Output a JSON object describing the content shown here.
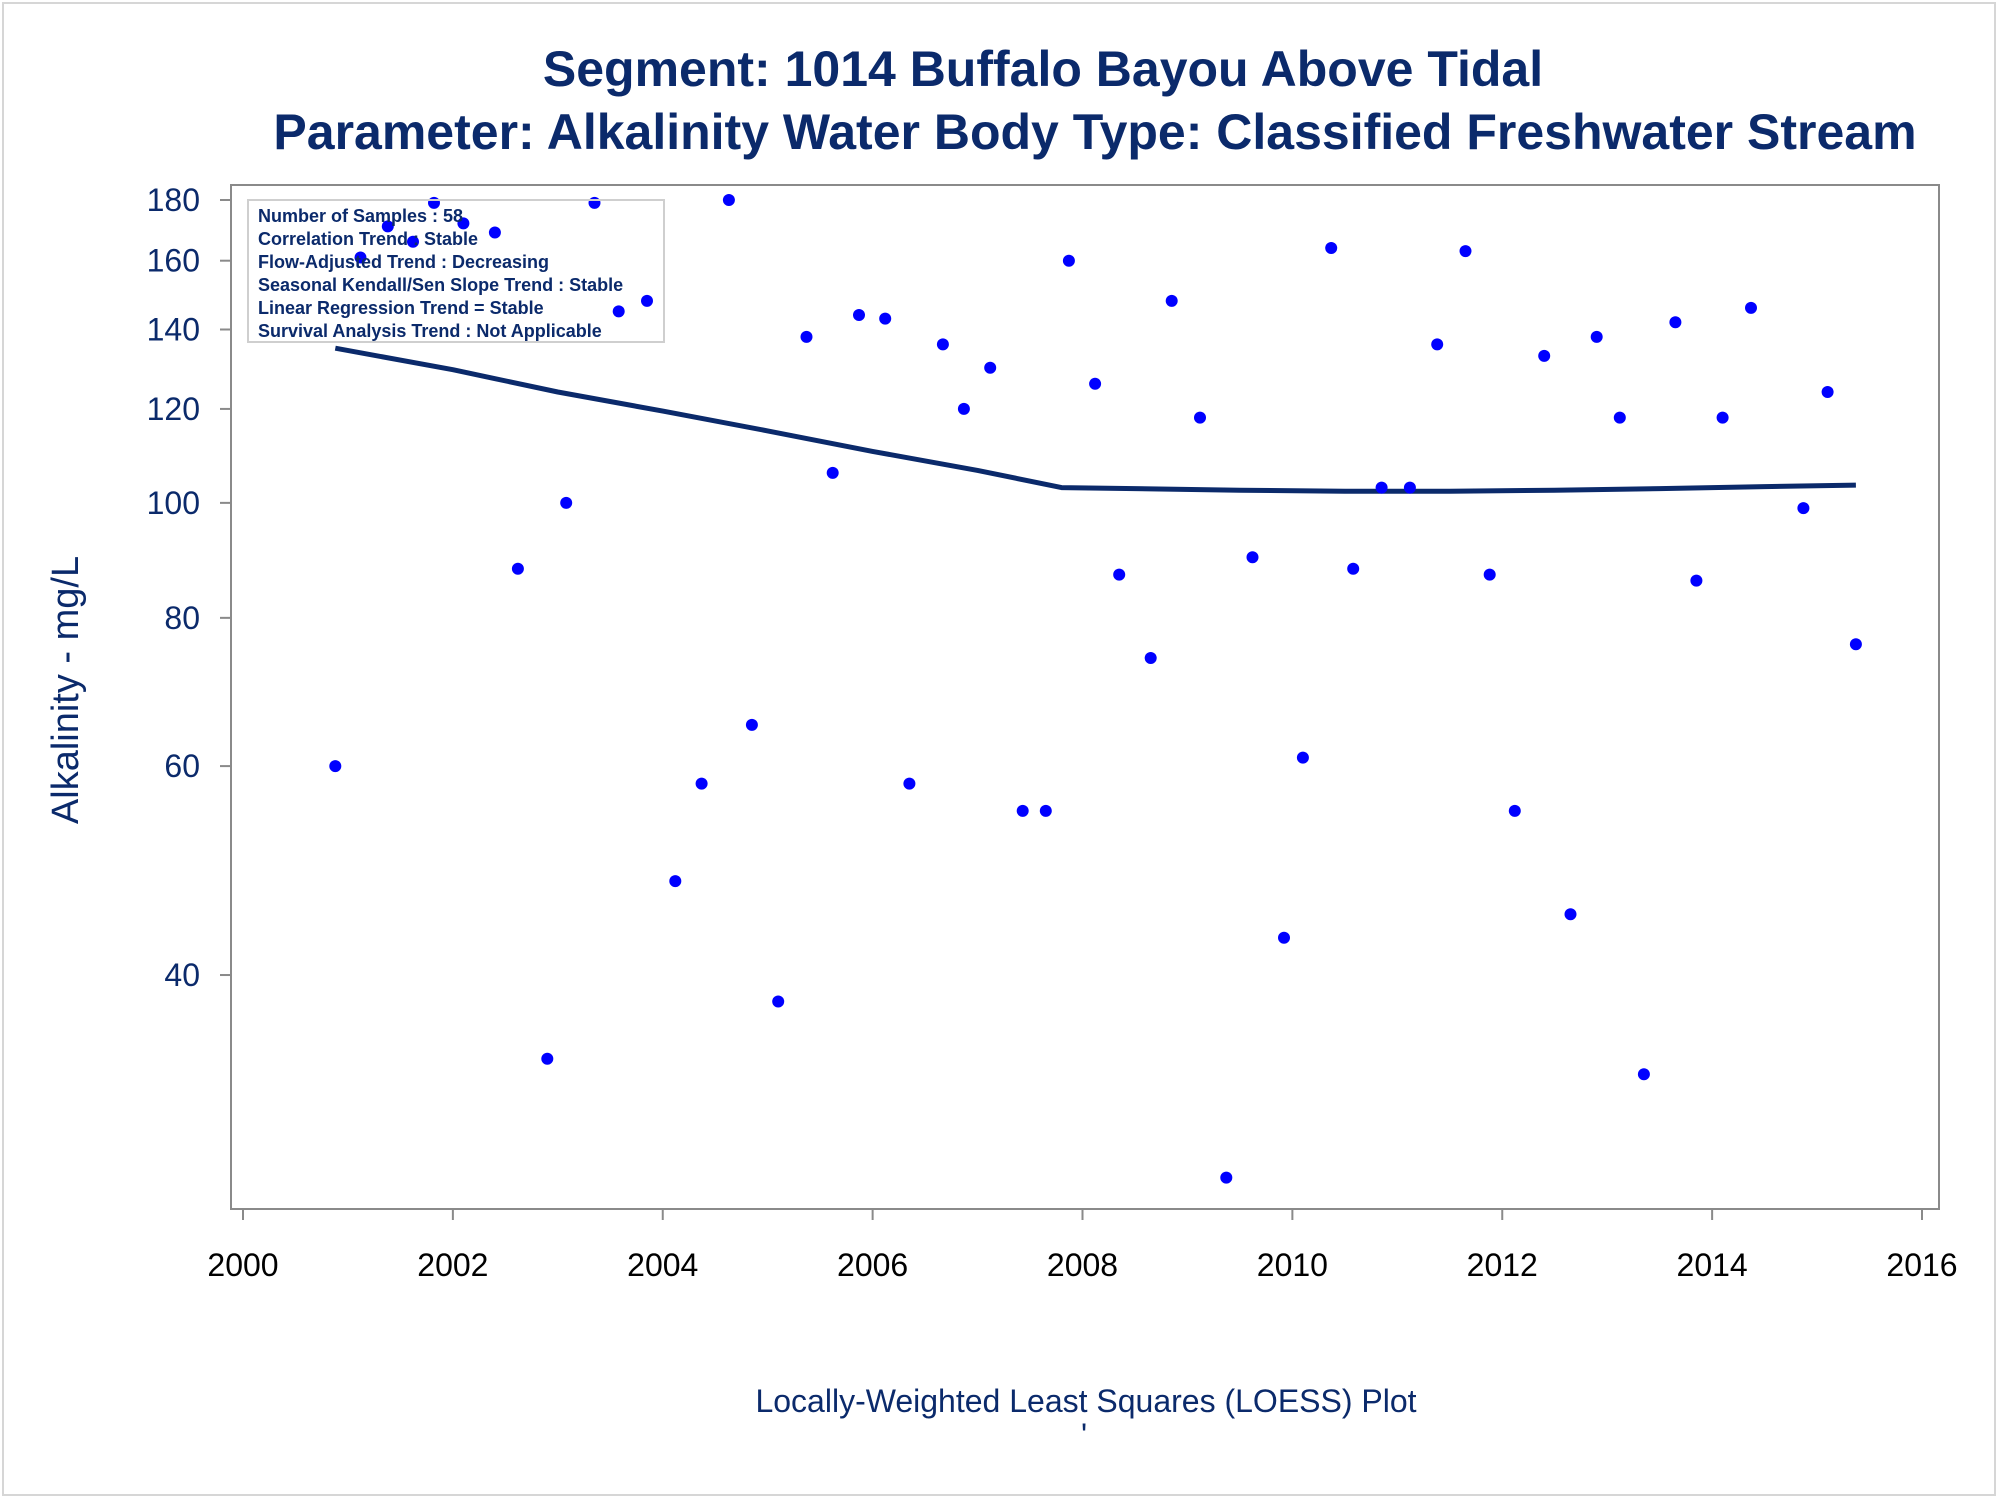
{
  "chart_data": {
    "type": "scatter",
    "title": "Segment: 1014  Buffalo Bayou Above Tidal",
    "subtitle": "Parameter: Alkalinity   Water Body Type: Classified Freshwater Stream",
    "ylabel": "Alkalinity - mg/L",
    "footnote": "Locally-Weighted Least Squares (LOESS) Plot",
    "footnote_mark": "'",
    "y_scale": "log",
    "xlim": [
      2000,
      2016
    ],
    "ylim": [
      26,
      180
    ],
    "x_ticks": [
      "2000",
      "2002",
      "2004",
      "2006",
      "2008",
      "2010",
      "2012",
      "2014",
      "2016"
    ],
    "y_ticks": [
      "40",
      "60",
      "80",
      "100",
      "120",
      "140",
      "160",
      "180"
    ],
    "grid": false,
    "marker_color": "#0000ff",
    "line_color": "#0b2a6b",
    "stats_box": [
      "Number of Samples : 58",
      "Correlation Trend : Stable",
      "Flow-Adjusted Trend : Decreasing",
      "Seasonal Kendall/Sen Slope Trend : Stable",
      "Linear Regression Trend = Stable",
      "Survival Analysis Trend : Not Applicable"
    ],
    "points": [
      {
        "x": 2000.88,
        "y": 60
      },
      {
        "x": 2001.12,
        "y": 161
      },
      {
        "x": 2001.38,
        "y": 171
      },
      {
        "x": 2001.62,
        "y": 166
      },
      {
        "x": 2001.82,
        "y": 179
      },
      {
        "x": 2002.1,
        "y": 172
      },
      {
        "x": 2002.4,
        "y": 169
      },
      {
        "x": 2002.62,
        "y": 88
      },
      {
        "x": 2002.9,
        "y": 34
      },
      {
        "x": 2003.08,
        "y": 100
      },
      {
        "x": 2003.35,
        "y": 179
      },
      {
        "x": 2003.58,
        "y": 145
      },
      {
        "x": 2003.85,
        "y": 148
      },
      {
        "x": 2004.12,
        "y": 48
      },
      {
        "x": 2004.37,
        "y": 58
      },
      {
        "x": 2004.63,
        "y": 180
      },
      {
        "x": 2004.85,
        "y": 65
      },
      {
        "x": 2005.1,
        "y": 38
      },
      {
        "x": 2005.37,
        "y": 138
      },
      {
        "x": 2005.62,
        "y": 106
      },
      {
        "x": 2005.87,
        "y": 144
      },
      {
        "x": 2006.12,
        "y": 143
      },
      {
        "x": 2006.35,
        "y": 58
      },
      {
        "x": 2006.67,
        "y": 136
      },
      {
        "x": 2006.87,
        "y": 120
      },
      {
        "x": 2007.12,
        "y": 130
      },
      {
        "x": 2007.43,
        "y": 55
      },
      {
        "x": 2007.65,
        "y": 55
      },
      {
        "x": 2007.87,
        "y": 160
      },
      {
        "x": 2008.12,
        "y": 126
      },
      {
        "x": 2008.35,
        "y": 87
      },
      {
        "x": 2008.65,
        "y": 74
      },
      {
        "x": 2008.85,
        "y": 148
      },
      {
        "x": 2009.12,
        "y": 118
      },
      {
        "x": 2009.37,
        "y": 27
      },
      {
        "x": 2009.62,
        "y": 90
      },
      {
        "x": 2009.92,
        "y": 43
      },
      {
        "x": 2010.1,
        "y": 61
      },
      {
        "x": 2010.37,
        "y": 164
      },
      {
        "x": 2010.58,
        "y": 88
      },
      {
        "x": 2010.85,
        "y": 103
      },
      {
        "x": 2011.12,
        "y": 103
      },
      {
        "x": 2011.38,
        "y": 136
      },
      {
        "x": 2011.65,
        "y": 163
      },
      {
        "x": 2011.88,
        "y": 87
      },
      {
        "x": 2012.12,
        "y": 55
      },
      {
        "x": 2012.4,
        "y": 133
      },
      {
        "x": 2012.65,
        "y": 45
      },
      {
        "x": 2012.9,
        "y": 138
      },
      {
        "x": 2013.12,
        "y": 118
      },
      {
        "x": 2013.35,
        "y": 33
      },
      {
        "x": 2013.65,
        "y": 142
      },
      {
        "x": 2013.85,
        "y": 86
      },
      {
        "x": 2014.1,
        "y": 118
      },
      {
        "x": 2014.37,
        "y": 146
      },
      {
        "x": 2014.87,
        "y": 99
      },
      {
        "x": 2015.1,
        "y": 124
      },
      {
        "x": 2015.37,
        "y": 76
      }
    ],
    "loess_line": [
      {
        "x": 2000.88,
        "y": 135
      },
      {
        "x": 2002.0,
        "y": 129.5
      },
      {
        "x": 2003.0,
        "y": 124
      },
      {
        "x": 2004.0,
        "y": 119.5
      },
      {
        "x": 2005.0,
        "y": 115
      },
      {
        "x": 2006.0,
        "y": 110.5
      },
      {
        "x": 2007.0,
        "y": 106.5
      },
      {
        "x": 2007.8,
        "y": 103
      },
      {
        "x": 2008.5,
        "y": 102.8
      },
      {
        "x": 2009.5,
        "y": 102.5
      },
      {
        "x": 2010.5,
        "y": 102.3
      },
      {
        "x": 2011.5,
        "y": 102.3
      },
      {
        "x": 2012.5,
        "y": 102.5
      },
      {
        "x": 2013.5,
        "y": 102.8
      },
      {
        "x": 2014.5,
        "y": 103.2
      },
      {
        "x": 2015.37,
        "y": 103.5
      }
    ]
  }
}
